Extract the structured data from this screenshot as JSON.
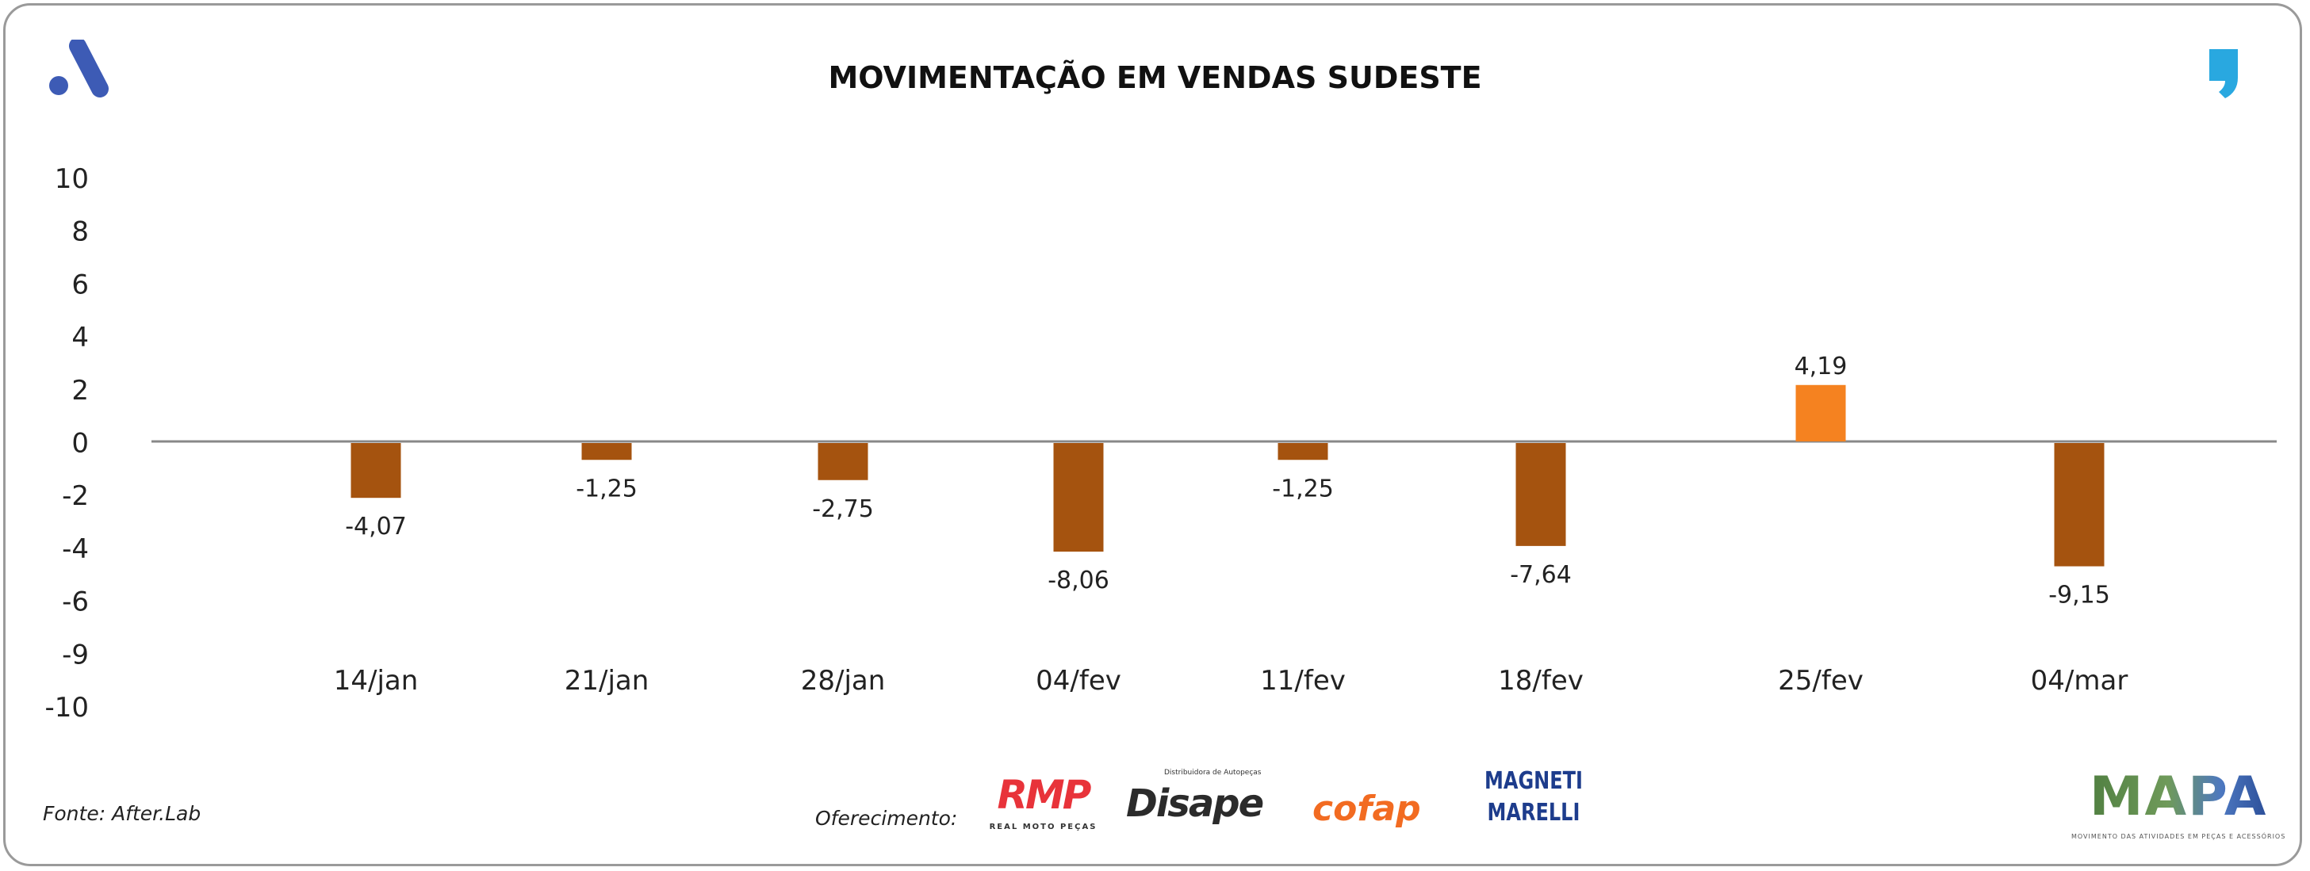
{
  "header": {
    "title": "MOVIMENTAÇÃO EM VENDAS SUDESTE"
  },
  "footer": {
    "source": "Fonte: After.Lab",
    "sponsor_label": "Oferecimento:",
    "sponsors": [
      {
        "name": "RMP",
        "sub": "REAL MOTO PEÇAS"
      },
      {
        "name": "Disape",
        "sub": "Distribuidora de Autopeças"
      },
      {
        "name": "cofap"
      },
      {
        "name": "MAGNETI MARELLI",
        "line1": "MAGNETI",
        "line2": "MARELLI"
      }
    ],
    "mapa": {
      "name": "MAPA",
      "sub": "MOVIMENTO DAS ATIVIDADES EM PEÇAS E ACESSÓRIOS"
    }
  },
  "colors": {
    "negative": "#a5530f",
    "positive": "#f58220",
    "axis": "#888888",
    "logo_a": "#3d5bb5",
    "logo_q": "#29a8e0"
  },
  "chart_data": {
    "type": "bar",
    "title": "MOVIMENTAÇÃO EM VENDAS SUDESTE",
    "categories": [
      "14/jan",
      "21/jan",
      "28/jan",
      "04/fev",
      "11/fev",
      "18/fev",
      "25/fev",
      "04/mar"
    ],
    "values": [
      -4.07,
      -1.25,
      -2.75,
      -8.06,
      -1.25,
      -7.64,
      4.19,
      -9.15
    ],
    "data_labels": [
      "-4,07",
      "-1,25",
      "-2,75",
      "-8,06",
      "-1,25",
      "-7,64",
      "4,19",
      "-9,15"
    ],
    "y_tick_labels": [
      "10",
      "8",
      "6",
      "4",
      "2",
      "0",
      "-2",
      "-4",
      "-6",
      "-9",
      "-10"
    ],
    "ylim": [
      -10,
      10
    ],
    "xlabel": "",
    "ylabel": "",
    "grid": false,
    "legend": "none"
  }
}
